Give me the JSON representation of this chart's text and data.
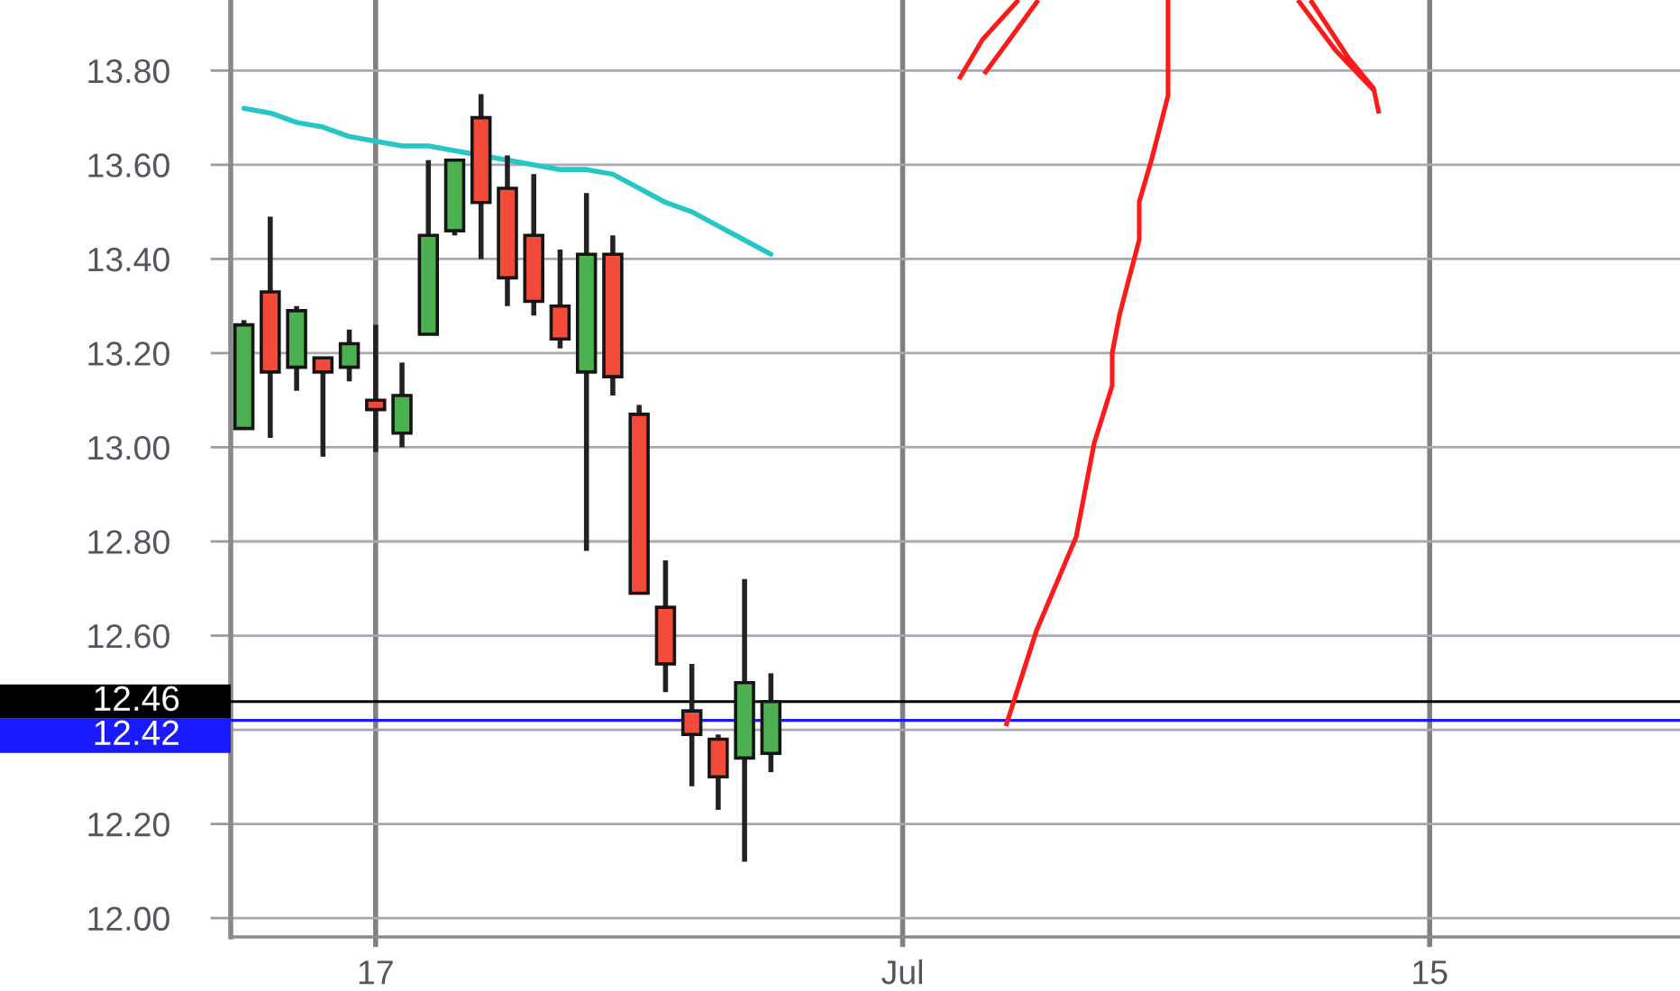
{
  "chart_data": {
    "type": "candlestick",
    "categories": [
      null,
      null,
      null,
      null,
      null,
      "17",
      null,
      null,
      null,
      null,
      null,
      null,
      null,
      null,
      null,
      null,
      null,
      null,
      null,
      null,
      null,
      null,
      null,
      null,
      null,
      "Jul",
      null,
      null,
      null,
      null,
      null,
      null,
      null,
      null,
      null,
      null,
      null,
      null,
      null,
      null,
      null,
      null,
      null,
      null,
      null,
      "15",
      null,
      null,
      null,
      null,
      null,
      null,
      null,
      null,
      null
    ],
    "ohlc": [
      [
        13.04,
        13.27,
        13.04,
        13.26
      ],
      [
        13.33,
        13.49,
        13.02,
        13.16
      ],
      [
        13.17,
        13.3,
        13.12,
        13.29
      ],
      [
        13.19,
        13.19,
        12.98,
        13.16
      ],
      [
        13.17,
        13.25,
        13.14,
        13.22
      ],
      [
        13.1,
        13.26,
        12.99,
        13.08
      ],
      [
        13.03,
        13.18,
        13.0,
        13.11
      ],
      [
        13.24,
        13.61,
        13.24,
        13.45
      ],
      [
        13.46,
        13.61,
        13.45,
        13.61
      ],
      [
        13.7,
        13.75,
        13.4,
        13.52
      ],
      [
        13.55,
        13.62,
        13.3,
        13.36
      ],
      [
        13.45,
        13.58,
        13.28,
        13.31
      ],
      [
        13.3,
        13.42,
        13.21,
        13.23
      ],
      [
        13.16,
        13.54,
        12.78,
        13.41
      ],
      [
        13.41,
        13.45,
        13.11,
        13.15
      ],
      [
        13.07,
        13.09,
        12.69,
        12.69
      ],
      [
        12.66,
        12.76,
        12.48,
        12.54
      ],
      [
        12.44,
        12.54,
        12.28,
        12.39
      ],
      [
        12.38,
        12.39,
        12.23,
        12.3
      ],
      [
        12.34,
        12.72,
        12.12,
        12.5
      ],
      [
        12.35,
        12.52,
        12.31,
        12.46
      ],
      null,
      null,
      null,
      null,
      null,
      null,
      null,
      null,
      null,
      null,
      null,
      null,
      null,
      null,
      null,
      null,
      null,
      null,
      null,
      null,
      null,
      null,
      null,
      null,
      null,
      null,
      null,
      null,
      null,
      null,
      null,
      null,
      null,
      null
    ],
    "colors": [
      "#4cb050",
      "#f44a3a",
      "#4cb050",
      "#f44a3a",
      "#4cb050",
      "#f44a3a",
      "#4cb050",
      "#4cb050",
      "#4cb050",
      "#f44a3a",
      "#f44a3a",
      "#f44a3a",
      "#f44a3a",
      "#4cb050",
      "#f44a3a",
      "#f44a3a",
      "#f44a3a",
      "#f44a3a",
      "#f44a3a",
      "#4cb050",
      "#4cb050",
      null,
      null,
      null,
      null,
      null,
      null,
      null,
      null,
      null,
      null,
      null,
      null,
      null,
      null,
      null,
      null,
      null,
      null,
      null,
      null,
      null,
      null,
      null,
      null,
      null,
      null,
      null,
      null,
      null,
      null,
      null,
      null,
      null,
      null
    ],
    "series": [
      {
        "type": "line",
        "color": "#26c6c6",
        "values": [
          13.72,
          13.71,
          13.69,
          13.68,
          13.66,
          13.65,
          13.64,
          13.64,
          13.63,
          13.62,
          13.61,
          13.6,
          13.59,
          13.59,
          13.58,
          13.55,
          13.52,
          13.5,
          13.47,
          13.44,
          13.41,
          null,
          null,
          null,
          null,
          null,
          null,
          null,
          null,
          null,
          null,
          null,
          null,
          null,
          null,
          null,
          null,
          null,
          null,
          null,
          null,
          null,
          null,
          null,
          null,
          null,
          null,
          null,
          null,
          null,
          null,
          null,
          null,
          null,
          null
        ]
      }
    ],
    "ylim": [
      11.96,
      13.95
    ],
    "yticks": [
      {
        "value": 12.0,
        "label": "12.00"
      },
      {
        "value": 12.2,
        "label": "12.20"
      },
      {
        "value": 12.4,
        "label": null
      },
      {
        "value": 12.6,
        "label": "12.60"
      },
      {
        "value": 12.8,
        "label": "12.80"
      },
      {
        "value": 13.0,
        "label": "13.00"
      },
      {
        "value": 13.2,
        "label": "13.20"
      },
      {
        "value": 13.4,
        "label": "13.40"
      },
      {
        "value": 13.6,
        "label": "13.60"
      },
      {
        "value": 13.8,
        "label": "13.80"
      }
    ],
    "ref_lines": [
      {
        "axis": "y",
        "value": 12.46,
        "label": "12.46",
        "color": "#000000"
      },
      {
        "axis": "y",
        "value": 12.42,
        "label": "12.42",
        "color": "#1a1aff"
      }
    ],
    "grid": true
  }
}
